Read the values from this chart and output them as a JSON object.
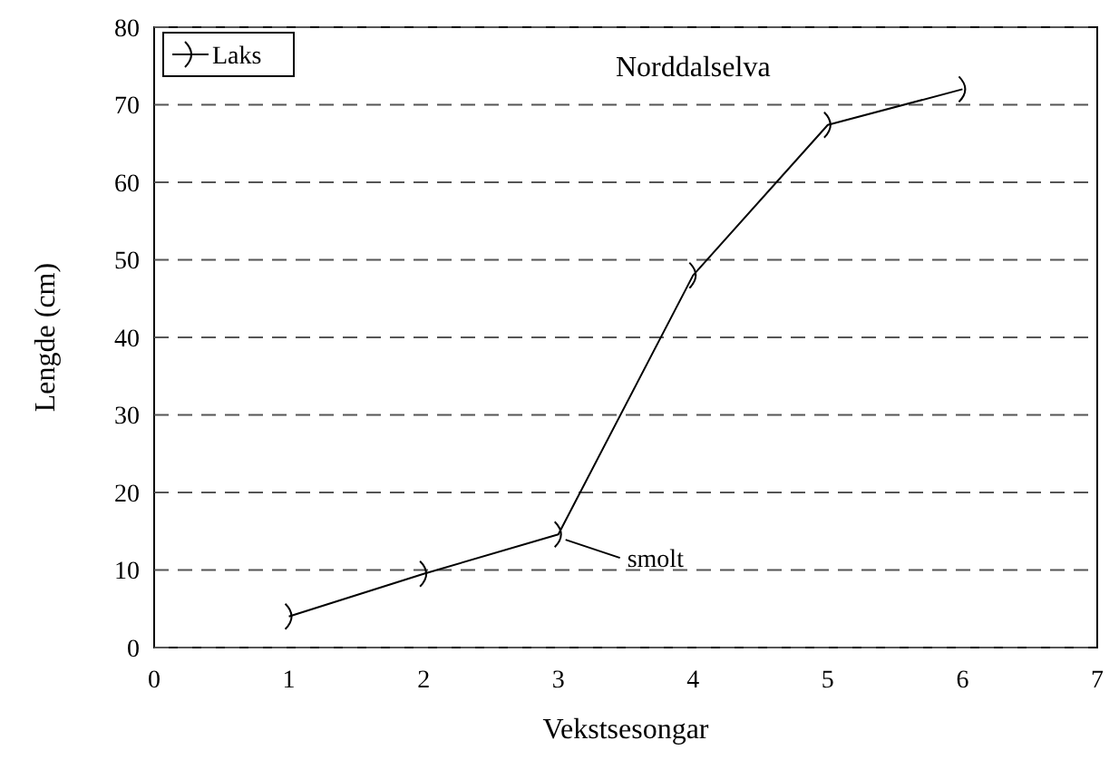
{
  "chart_data": {
    "type": "line",
    "title": "Norddalselva",
    "xlabel": "Vekstsesongar",
    "ylabel": "Lengde (cm)",
    "x": [
      1,
      2,
      3,
      4,
      5,
      6
    ],
    "series": [
      {
        "name": "Laks",
        "color": "#000000",
        "values": [
          4,
          9.5,
          14.6,
          48,
          67.4,
          72
        ]
      }
    ],
    "xlim": [
      0,
      7
    ],
    "xticks": [
      0,
      1,
      2,
      3,
      4,
      5,
      6,
      7
    ],
    "ylim": [
      0,
      80
    ],
    "yticks": [
      0,
      10,
      20,
      30,
      40,
      50,
      60,
      70,
      80
    ],
    "grid": "y",
    "legend": "top left",
    "annotations": [
      {
        "text": "smolt",
        "x": 3,
        "y": 14.6
      }
    ]
  }
}
